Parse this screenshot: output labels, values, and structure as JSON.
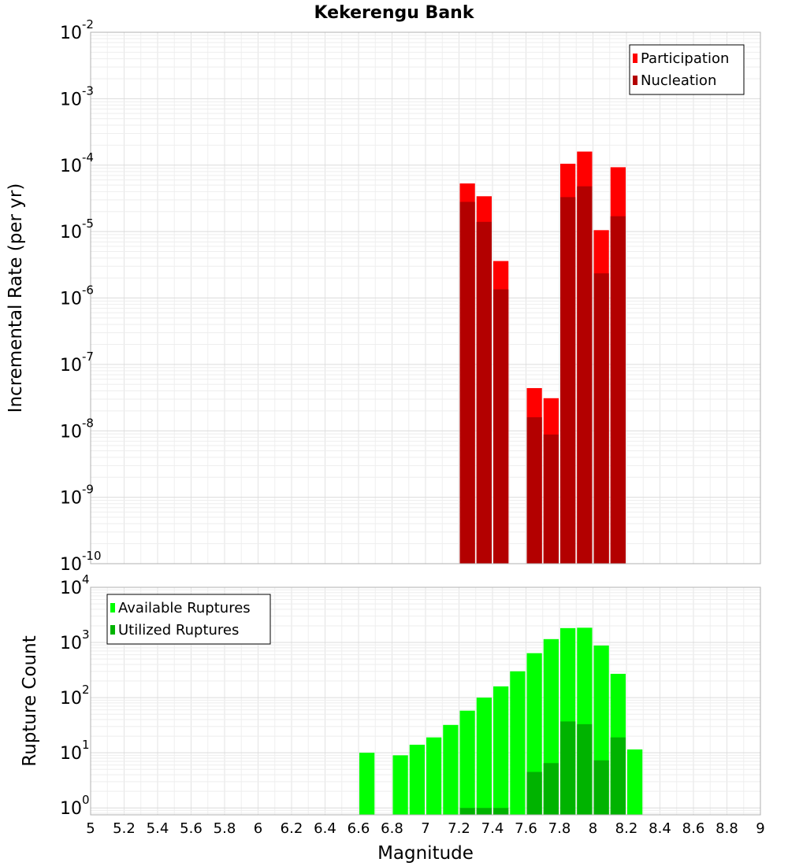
{
  "chart_data": [
    {
      "type": "bar",
      "title": "Kekerengu Bank",
      "xlabel": "",
      "ylabel": "Incremental Rate (per yr)",
      "yscale": "log",
      "ylim": [
        1e-10,
        0.01
      ],
      "xlim": [
        5,
        9
      ],
      "bar_width": 0.1,
      "y_ticks": [
        {
          "base": "10",
          "exp": "-2",
          "value": 0.01
        },
        {
          "base": "10",
          "exp": "-3",
          "value": 0.001
        },
        {
          "base": "10",
          "exp": "-4",
          "value": 0.0001
        },
        {
          "base": "10",
          "exp": "-5",
          "value": 1e-05
        },
        {
          "base": "10",
          "exp": "-6",
          "value": 1e-06
        },
        {
          "base": "10",
          "exp": "-7",
          "value": 1e-07
        },
        {
          "base": "10",
          "exp": "-8",
          "value": 1e-08
        },
        {
          "base": "10",
          "exp": "-9",
          "value": 1e-09
        },
        {
          "base": "10",
          "exp": "-10",
          "value": 1e-10
        }
      ],
      "legend_position": "top-right",
      "series": [
        {
          "name": "Participation",
          "color": "#ff0000",
          "x": [
            7.25,
            7.35,
            7.45,
            7.65,
            7.75,
            7.85,
            7.95,
            8.05,
            8.15
          ],
          "values": [
            5.3e-05,
            3.4e-05,
            3.6e-06,
            4.4e-08,
            3.1e-08,
            0.000105,
            0.00016,
            1.05e-05,
            9.3e-05
          ]
        },
        {
          "name": "Nucleation",
          "color": "#b30000",
          "x": [
            7.25,
            7.35,
            7.45,
            7.65,
            7.75,
            7.85,
            7.95,
            8.05,
            8.15
          ],
          "values": [
            2.8e-05,
            1.4e-05,
            1.35e-06,
            1.6e-08,
            8.8e-09,
            3.3e-05,
            4.8e-05,
            2.35e-06,
            1.7e-05
          ]
        }
      ]
    },
    {
      "type": "bar",
      "title": "",
      "xlabel": "Magnitude",
      "ylabel": "Rupture Count",
      "yscale": "log",
      "ylim": [
        0.75,
        10000.0
      ],
      "xlim": [
        5,
        9
      ],
      "bar_width": 0.1,
      "x_ticks": [
        "5",
        "5.2",
        "5.4",
        "5.6",
        "5.8",
        "6",
        "6.2",
        "6.4",
        "6.6",
        "6.8",
        "7",
        "7.2",
        "7.4",
        "7.6",
        "7.8",
        "8",
        "8.2",
        "8.4",
        "8.6",
        "8.8",
        "9"
      ],
      "y_ticks": [
        {
          "base": "10",
          "exp": "4",
          "value": 10000.0
        },
        {
          "base": "10",
          "exp": "3",
          "value": 1000.0
        },
        {
          "base": "10",
          "exp": "2",
          "value": 100.0
        },
        {
          "base": "10",
          "exp": "1",
          "value": 10.0
        },
        {
          "base": "10",
          "exp": "0",
          "value": 1.0
        }
      ],
      "legend_position": "top-left",
      "series": [
        {
          "name": "Available Ruptures",
          "color": "#00ff00",
          "x": [
            6.65,
            6.85,
            6.95,
            7.05,
            7.15,
            7.25,
            7.35,
            7.45,
            7.55,
            7.65,
            7.75,
            7.85,
            7.95,
            8.05,
            8.15,
            8.25
          ],
          "values": [
            10,
            9,
            14,
            19,
            32,
            58,
            100,
            160,
            300,
            640,
            1150,
            1820,
            1850,
            880,
            270,
            11.5
          ]
        },
        {
          "name": "Utilized Ruptures",
          "color": "#00b300",
          "x": [
            7.25,
            7.35,
            7.45,
            7.65,
            7.75,
            7.85,
            7.95,
            8.05,
            8.15
          ],
          "values": [
            1,
            1,
            1,
            4.5,
            6.5,
            37,
            33,
            7.3,
            19
          ]
        }
      ]
    }
  ]
}
